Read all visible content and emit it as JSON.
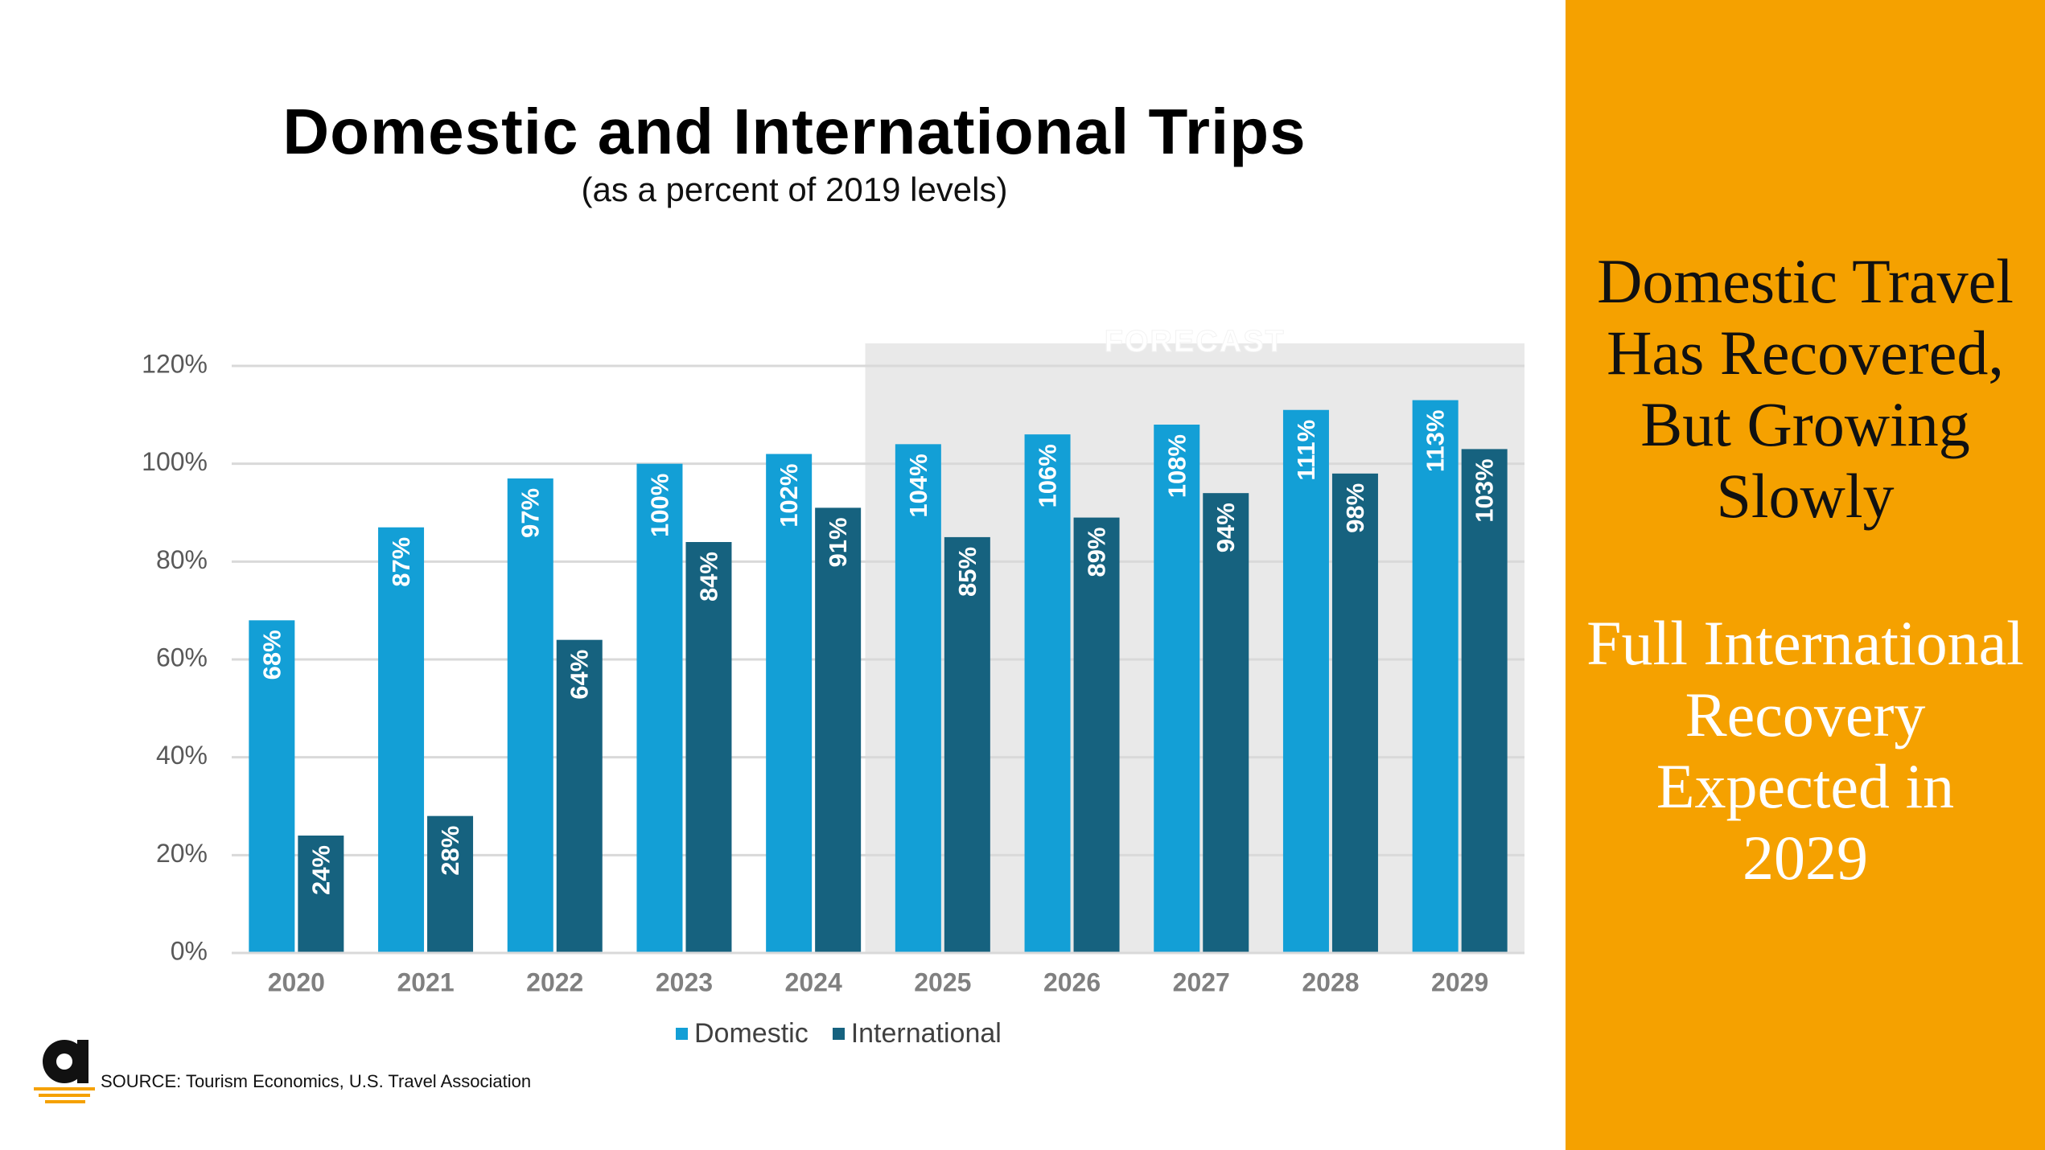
{
  "slide": {
    "side_panel": {
      "headline_1": [
        "Domestic Travel",
        "Has Recovered,",
        "But Growing",
        "Slowly"
      ],
      "headline_2": [
        "Full International",
        "Recovery",
        "Expected in",
        "2029"
      ]
    },
    "source": "SOURCE: Tourism Economics, U.S. Travel Association"
  },
  "colors": {
    "domestic": "#139fd6",
    "international": "#16627f",
    "forecast_band": "#e9e9e9",
    "accent": "#f5a100",
    "grid": "#d9d9d9",
    "tick_text": "#595959",
    "year_text": "#808080"
  },
  "chart_data": {
    "type": "bar",
    "title": "Domestic and International Trips",
    "subtitle": "(as a percent of 2019 levels)",
    "categories": [
      "2020",
      "2021",
      "2022",
      "2023",
      "2024",
      "2025",
      "2026",
      "2027",
      "2028",
      "2029"
    ],
    "series": [
      {
        "name": "Domestic",
        "values": [
          68,
          87,
          97,
          100,
          102,
          104,
          106,
          108,
          111,
          113
        ],
        "labels": [
          "68%",
          "87%",
          "97%",
          "100%",
          "102%",
          "104%",
          "106%",
          "108%",
          "111%",
          "113%"
        ]
      },
      {
        "name": "International",
        "values": [
          24,
          28,
          64,
          84,
          91,
          85,
          89,
          94,
          98,
          103
        ],
        "labels": [
          "24%",
          "28%",
          "64%",
          "84%",
          "91%",
          "85%",
          "89%",
          "94%",
          "98%",
          "103%"
        ]
      }
    ],
    "ylim": [
      0,
      120
    ],
    "yticks": [
      0,
      20,
      40,
      60,
      80,
      100,
      120
    ],
    "ytick_labels": [
      "0%",
      "20%",
      "40%",
      "60%",
      "80%",
      "100%",
      "120%"
    ],
    "forecast": {
      "label": "FORECAST",
      "start_category": "2025",
      "end_category": "2029"
    },
    "legend_position": "bottom-center",
    "grid": true
  }
}
